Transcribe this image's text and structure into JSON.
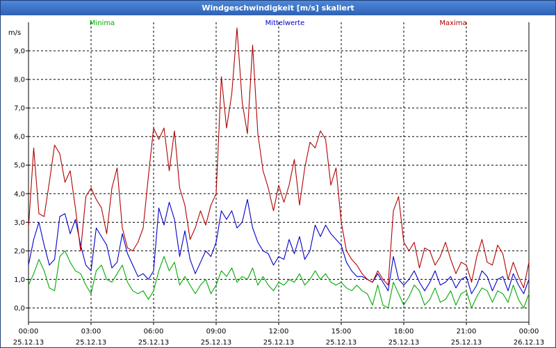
{
  "window": {
    "title": "Windgeschwindigkeit [m/s] skaliert"
  },
  "chart_data": {
    "type": "line",
    "title": "Windgeschwindigkeit [m/s] skaliert",
    "ylabel": "m/s",
    "ylim": [
      -0.5,
      10.0
    ],
    "xlim": [
      0,
      24
    ],
    "yticks": [
      0,
      1,
      2,
      3,
      4,
      5,
      6,
      7,
      8,
      9
    ],
    "ytick_labels": [
      "0,0",
      "1,0",
      "2,0",
      "3,0",
      "4,0",
      "5,0",
      "6,0",
      "7,0",
      "8,0",
      "9,0"
    ],
    "xticks": [
      0,
      3,
      6,
      9,
      12,
      15,
      18,
      21,
      24
    ],
    "xtick_times": [
      "00:00",
      "03:00",
      "06:00",
      "09:00",
      "12:00",
      "15:00",
      "18:00",
      "21:00",
      "00:00"
    ],
    "xtick_dates": [
      "25.12.13",
      "25.12.13",
      "25.12.13",
      "25.12.13",
      "25.12.13",
      "25.12.13",
      "25.12.13",
      "25.12.13",
      "26.12.13"
    ],
    "grid": true,
    "legend": [
      "Minima",
      "Mittelwerte",
      "Maxima"
    ],
    "series": [
      {
        "name": "Minima",
        "color": "#00aa00",
        "x": [
          0,
          0.25,
          0.5,
          0.75,
          1,
          1.25,
          1.5,
          1.75,
          2,
          2.25,
          2.5,
          2.75,
          3,
          3.25,
          3.5,
          3.75,
          4,
          4.25,
          4.5,
          4.75,
          5,
          5.25,
          5.5,
          5.75,
          6,
          6.25,
          6.5,
          6.75,
          7,
          7.25,
          7.5,
          7.75,
          8,
          8.25,
          8.5,
          8.75,
          9,
          9.25,
          9.5,
          9.75,
          10,
          10.25,
          10.5,
          10.75,
          11,
          11.25,
          11.5,
          11.75,
          12,
          12.25,
          12.5,
          12.75,
          13,
          13.25,
          13.5,
          13.75,
          14,
          14.25,
          14.5,
          14.75,
          15,
          15.25,
          15.5,
          15.75,
          16,
          16.25,
          16.5,
          16.75,
          17,
          17.25,
          17.5,
          17.75,
          18,
          18.25,
          18.5,
          18.75,
          19,
          19.25,
          19.5,
          19.75,
          20,
          20.25,
          20.5,
          20.75,
          21,
          21.25,
          21.5,
          21.75,
          22,
          22.25,
          22.5,
          22.75,
          23,
          23.25,
          23.5,
          23.75,
          24
        ],
        "values": [
          0.8,
          1.2,
          1.7,
          1.3,
          0.7,
          0.6,
          1.8,
          2.0,
          1.6,
          1.3,
          1.2,
          0.8,
          0.5,
          1.3,
          1.5,
          1.0,
          0.9,
          1.2,
          1.5,
          0.9,
          0.6,
          0.5,
          0.6,
          0.3,
          0.6,
          1.3,
          1.8,
          1.3,
          1.6,
          0.8,
          1.1,
          0.8,
          0.5,
          0.8,
          1.0,
          0.5,
          0.8,
          1.3,
          1.1,
          1.4,
          0.9,
          1.1,
          1.0,
          1.4,
          0.8,
          1.1,
          0.8,
          0.6,
          0.9,
          0.8,
          1.0,
          0.9,
          1.2,
          0.8,
          1.0,
          1.3,
          1.0,
          1.2,
          0.9,
          0.8,
          0.9,
          0.7,
          0.6,
          0.8,
          0.6,
          0.5,
          0.1,
          0.8,
          0.1,
          0.0,
          0.9,
          0.5,
          0.1,
          0.4,
          0.8,
          0.6,
          0.1,
          0.3,
          0.7,
          0.2,
          0.3,
          0.6,
          0.1,
          0.5,
          0.6,
          0.0,
          0.4,
          0.7,
          0.6,
          0.2,
          0.6,
          0.5,
          0.2,
          0.8,
          0.3,
          0.0,
          0.5
        ],
        "points_note": "values read approximately from gridlines"
      },
      {
        "name": "Mittelwerte",
        "color": "#0000cc",
        "x": [
          0,
          0.25,
          0.5,
          0.75,
          1,
          1.25,
          1.5,
          1.75,
          2,
          2.25,
          2.5,
          2.75,
          3,
          3.25,
          3.5,
          3.75,
          4,
          4.25,
          4.5,
          4.75,
          5,
          5.25,
          5.5,
          5.75,
          6,
          6.25,
          6.5,
          6.75,
          7,
          7.25,
          7.5,
          7.75,
          8,
          8.25,
          8.5,
          8.75,
          9,
          9.25,
          9.5,
          9.75,
          10,
          10.25,
          10.5,
          10.75,
          11,
          11.25,
          11.5,
          11.75,
          12,
          12.25,
          12.5,
          12.75,
          13,
          13.25,
          13.5,
          13.75,
          14,
          14.25,
          14.5,
          14.75,
          15,
          15.25,
          15.5,
          15.75,
          16,
          16.25,
          16.5,
          16.75,
          17,
          17.25,
          17.5,
          17.75,
          18,
          18.25,
          18.5,
          18.75,
          19,
          19.25,
          19.5,
          19.75,
          20,
          20.25,
          20.5,
          20.75,
          21,
          21.25,
          21.5,
          21.75,
          22,
          22.25,
          22.5,
          22.75,
          23,
          23.25,
          23.5,
          23.75,
          24
        ],
        "values": [
          1.5,
          2.4,
          3.0,
          2.2,
          1.5,
          1.7,
          3.2,
          3.3,
          2.6,
          3.1,
          2.2,
          1.5,
          1.3,
          2.8,
          2.5,
          2.2,
          1.4,
          1.6,
          2.6,
          1.9,
          1.5,
          1.1,
          1.2,
          1.0,
          1.3,
          3.5,
          2.9,
          3.7,
          3.1,
          1.8,
          2.7,
          1.7,
          1.2,
          1.6,
          2.0,
          1.8,
          2.3,
          3.4,
          3.1,
          3.4,
          2.8,
          3.0,
          3.8,
          2.8,
          2.3,
          2.0,
          1.9,
          1.5,
          1.8,
          1.7,
          2.4,
          1.9,
          2.5,
          1.7,
          2.0,
          2.9,
          2.5,
          2.9,
          2.6,
          2.4,
          2.2,
          1.6,
          1.3,
          1.1,
          1.1,
          1.0,
          0.9,
          1.2,
          0.9,
          0.6,
          1.8,
          1.0,
          0.8,
          1.0,
          1.3,
          0.9,
          0.6,
          0.9,
          1.3,
          0.8,
          0.9,
          1.1,
          0.7,
          1.0,
          1.1,
          0.5,
          0.8,
          1.3,
          1.1,
          0.6,
          1.0,
          1.1,
          0.6,
          1.2,
          0.8,
          0.5,
          1.0
        ],
        "points_note": "values read approximately from gridlines"
      },
      {
        "name": "Maxima",
        "color": "#b00000",
        "x": [
          0,
          0.25,
          0.5,
          0.75,
          1,
          1.25,
          1.5,
          1.75,
          2,
          2.25,
          2.5,
          2.75,
          3,
          3.25,
          3.5,
          3.75,
          4,
          4.25,
          4.5,
          4.75,
          5,
          5.25,
          5.5,
          5.75,
          6,
          6.25,
          6.5,
          6.75,
          7,
          7.25,
          7.5,
          7.75,
          8,
          8.25,
          8.5,
          8.75,
          9,
          9.25,
          9.5,
          9.75,
          10,
          10.25,
          10.5,
          10.75,
          11,
          11.25,
          11.5,
          11.75,
          12,
          12.25,
          12.5,
          12.75,
          13,
          13.25,
          13.5,
          13.75,
          14,
          14.25,
          14.5,
          14.75,
          15,
          15.25,
          15.5,
          15.75,
          16,
          16.25,
          16.5,
          16.75,
          17,
          17.25,
          17.5,
          17.75,
          18,
          18.25,
          18.5,
          18.75,
          19,
          19.25,
          19.5,
          19.75,
          20,
          20.25,
          20.5,
          20.75,
          21,
          21.25,
          21.5,
          21.75,
          22,
          22.25,
          22.5,
          22.75,
          23,
          23.25,
          23.5,
          23.75,
          24
        ],
        "values": [
          2.8,
          5.6,
          3.3,
          3.2,
          4.4,
          5.7,
          5.4,
          4.4,
          4.8,
          3.5,
          2.0,
          3.9,
          4.2,
          3.8,
          3.5,
          2.6,
          4.2,
          4.9,
          2.8,
          2.1,
          2.0,
          2.3,
          2.8,
          4.6,
          6.3,
          5.9,
          6.3,
          4.8,
          6.2,
          4.2,
          3.6,
          2.4,
          2.8,
          3.4,
          2.9,
          3.6,
          4.0,
          8.1,
          6.3,
          7.5,
          9.8,
          7.2,
          6.1,
          9.2,
          6.1,
          4.8,
          4.2,
          3.4,
          4.3,
          3.7,
          4.3,
          5.2,
          3.6,
          4.9,
          5.8,
          5.6,
          6.2,
          5.9,
          4.3,
          4.9,
          3.0,
          2.0,
          1.7,
          1.5,
          1.2,
          1.0,
          0.9,
          1.3,
          1.0,
          0.8,
          3.4,
          3.9,
          2.3,
          2.0,
          2.3,
          1.4,
          2.1,
          2.0,
          1.5,
          1.8,
          2.3,
          1.7,
          1.2,
          1.6,
          1.5,
          0.9,
          1.8,
          2.4,
          1.6,
          1.5,
          2.2,
          1.9,
          1.0,
          1.6,
          1.1,
          0.7,
          1.6
        ],
        "points_note": "values read approximately from gridlines"
      }
    ]
  }
}
